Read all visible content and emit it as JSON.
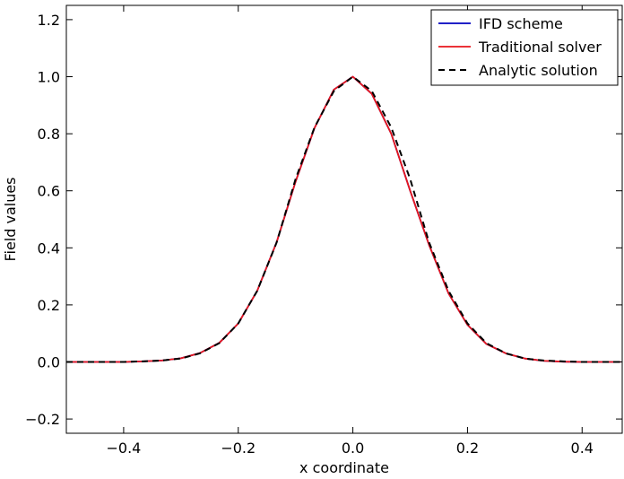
{
  "chart_data": {
    "type": "line",
    "title": "",
    "xlabel": "x coordinate",
    "ylabel": "Field values",
    "xlim": [
      -0.5,
      0.47
    ],
    "ylim": [
      -0.25,
      1.25
    ],
    "xticks": [
      -0.4,
      -0.2,
      0.0,
      0.2,
      0.4
    ],
    "xtick_labels": [
      "−0.4",
      "−0.2",
      "0.0",
      "0.2",
      "0.4"
    ],
    "yticks": [
      -0.2,
      0.0,
      0.2,
      0.4,
      0.6,
      0.8,
      1.0,
      1.2
    ],
    "ytick_labels": [
      "−0.2",
      "0.0",
      "0.2",
      "0.4",
      "0.6",
      "0.8",
      "1.0",
      "1.2"
    ],
    "grid": false,
    "legend_position": "top-right",
    "x": [
      -0.5,
      -0.467,
      -0.433,
      -0.4,
      -0.367,
      -0.333,
      -0.3,
      -0.267,
      -0.233,
      -0.2,
      -0.167,
      -0.133,
      -0.1,
      -0.067,
      -0.033,
      0.0,
      0.033,
      0.067,
      0.1,
      0.133,
      0.167,
      0.2,
      0.233,
      0.267,
      0.3,
      0.333,
      0.367,
      0.4,
      0.433,
      0.467
    ],
    "series": [
      {
        "name": "IFD scheme",
        "color": "#0000bf",
        "style": "solid",
        "values": [
          0.0,
          0.0,
          0.0,
          0.0,
          0.002,
          0.005,
          0.013,
          0.031,
          0.067,
          0.135,
          0.249,
          0.42,
          0.632,
          0.82,
          0.955,
          1.0,
          0.94,
          0.8,
          0.6,
          0.41,
          0.24,
          0.13,
          0.063,
          0.03,
          0.012,
          0.004,
          0.001,
          0.0,
          0.0,
          0.0
        ]
      },
      {
        "name": "Traditional solver",
        "color": "#e8161c",
        "style": "solid",
        "values": [
          0.0,
          0.0,
          0.0,
          0.0,
          0.002,
          0.005,
          0.013,
          0.031,
          0.067,
          0.135,
          0.249,
          0.42,
          0.632,
          0.82,
          0.955,
          1.0,
          0.94,
          0.8,
          0.6,
          0.41,
          0.24,
          0.13,
          0.063,
          0.03,
          0.012,
          0.004,
          0.001,
          0.0,
          0.0,
          0.0
        ]
      },
      {
        "name": "Analytic solution",
        "color": "#000000",
        "style": "dashed",
        "values": [
          0.0,
          0.0,
          0.0,
          0.0,
          0.002,
          0.005,
          0.012,
          0.03,
          0.066,
          0.135,
          0.249,
          0.419,
          0.641,
          0.822,
          0.95,
          1.0,
          0.95,
          0.822,
          0.641,
          0.419,
          0.249,
          0.135,
          0.066,
          0.03,
          0.012,
          0.005,
          0.002,
          0.0,
          0.0,
          0.0
        ]
      }
    ]
  }
}
